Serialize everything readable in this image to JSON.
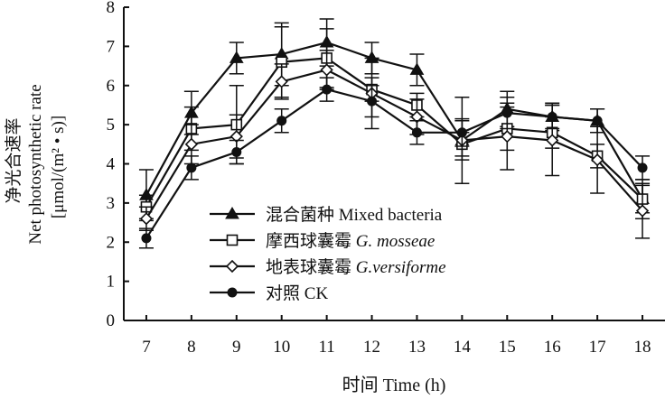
{
  "chart_data": {
    "type": "line",
    "xlabel": "时间 Time (h)",
    "ylabel_cn": "净光合速率",
    "ylabel_en": "Net photosynthetic rate",
    "ylabel_unit": "[μmol/(m² • s)]",
    "x": [
      7,
      8,
      9,
      10,
      11,
      12,
      13,
      14,
      15,
      16,
      17,
      18
    ],
    "xlim": [
      6.5,
      18.5
    ],
    "ylim": [
      0,
      8
    ],
    "yticks": [
      0,
      1,
      2,
      3,
      4,
      5,
      6,
      7,
      8
    ],
    "grid": false,
    "legend_position": "bottom-left",
    "series": [
      {
        "name": "混合菌种 Mixed bacteria",
        "marker": "filled-triangle",
        "values": [
          3.2,
          5.3,
          6.7,
          6.8,
          7.1,
          6.7,
          6.4,
          4.6,
          5.4,
          5.2,
          5.1,
          3.1
        ],
        "errors": [
          0.65,
          0.55,
          0.4,
          0.8,
          0.6,
          0.4,
          0.4,
          0.5,
          0.45,
          0.35,
          0.3,
          0.35
        ]
      },
      {
        "name": "摩西球囊霉 G. mosseae",
        "marker": "open-square",
        "values": [
          2.9,
          4.9,
          5.0,
          6.6,
          6.7,
          5.9,
          5.5,
          4.5,
          4.9,
          4.8,
          4.2,
          3.1
        ],
        "errors": [
          0.3,
          0.55,
          1.0,
          0.9,
          0.75,
          0.3,
          0.3,
          0.3,
          0.55,
          0.4,
          0.3,
          0.5
        ]
      },
      {
        "name": "地表球囊霉 G.versiforme",
        "marker": "open-diamond",
        "values": [
          2.6,
          4.5,
          4.7,
          6.1,
          6.4,
          5.8,
          5.2,
          4.6,
          4.7,
          4.6,
          4.1,
          2.8
        ],
        "errors": [
          0.3,
          0.5,
          0.55,
          0.45,
          0.5,
          0.9,
          0.45,
          1.1,
          0.85,
          0.9,
          0.85,
          0.7
        ]
      },
      {
        "name": "对照 CK",
        "marker": "filled-circle",
        "values": [
          2.1,
          3.9,
          4.3,
          5.1,
          5.9,
          5.6,
          4.8,
          4.8,
          5.3,
          5.2,
          5.1,
          3.9
        ],
        "errors": [
          0.25,
          0.3,
          0.3,
          0.3,
          0.3,
          0.4,
          0.3,
          0.35,
          0.4,
          0.3,
          0.3,
          0.3
        ]
      }
    ]
  }
}
